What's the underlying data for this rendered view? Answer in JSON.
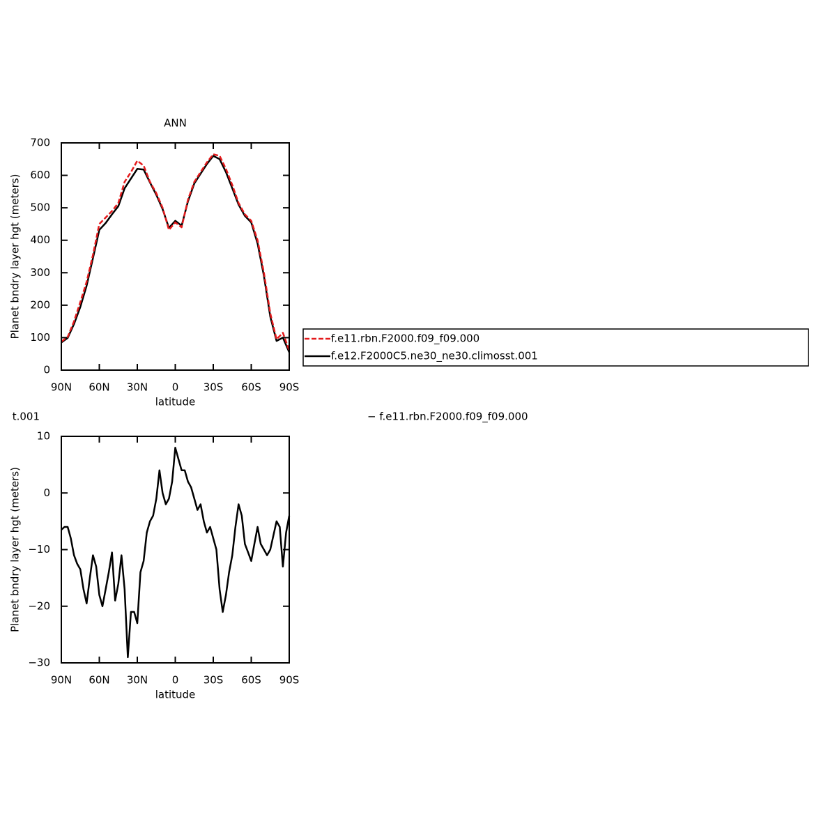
{
  "chart_data": [
    {
      "type": "line",
      "title": "ANN",
      "xlabel": "latitude",
      "ylabel": "Planet bndry layer hgt (meters)",
      "x": [
        90,
        85,
        80,
        75,
        70,
        65,
        60,
        55,
        50,
        45,
        40,
        35,
        30,
        25,
        20,
        15,
        10,
        5,
        0,
        -5,
        -10,
        -15,
        -20,
        -25,
        -30,
        -35,
        -40,
        -45,
        -50,
        -55,
        -60,
        -65,
        -70,
        -75,
        -80,
        -85,
        -90
      ],
      "series": [
        {
          "name": "f.e11.rbn.F2000.f09_f09.000",
          "color": "#e41a1c",
          "style": "dashed",
          "values": [
            88,
            102,
            150,
            210,
            272,
            355,
            450,
            470,
            490,
            515,
            580,
            610,
            645,
            630,
            580,
            545,
            500,
            432,
            455,
            440,
            525,
            580,
            610,
            640,
            665,
            660,
            620,
            570,
            515,
            480,
            460,
            400,
            300,
            175,
            95,
            115,
            60
          ]
        },
        {
          "name": "f.e12.F2000C5.ne30_ne30.climosst.001",
          "color": "#000000",
          "style": "solid",
          "values": [
            85,
            99,
            142,
            195,
            260,
            345,
            432,
            453,
            480,
            505,
            560,
            590,
            620,
            618,
            578,
            540,
            496,
            438,
            460,
            445,
            520,
            575,
            605,
            635,
            660,
            650,
            610,
            560,
            510,
            475,
            455,
            390,
            290,
            165,
            90,
            100,
            55
          ]
        }
      ],
      "xlim": [
        90,
        -90
      ],
      "xticks": [
        {
          "value": 90,
          "label": "90N"
        },
        {
          "value": 60,
          "label": "60N"
        },
        {
          "value": 30,
          "label": "30N"
        },
        0,
        {
          "value": -30,
          "label": "30S"
        },
        {
          "value": -60,
          "label": "60S"
        },
        {
          "value": -90,
          "label": "90S"
        }
      ],
      "ylim": [
        0,
        700
      ],
      "yticks": [
        0,
        100,
        200,
        300,
        400,
        500,
        600,
        700
      ],
      "legend": "right"
    },
    {
      "type": "line",
      "xlabel": "latitude",
      "ylabel": "Planet bndry layer hgt (meters)",
      "annotations": [
        "t.001",
        "− f.e11.rbn.F2000.f09_f09.000"
      ],
      "x": [
        90,
        87.5,
        85,
        82.5,
        80,
        77.5,
        75,
        72.5,
        70,
        67.5,
        65,
        62.5,
        60,
        57.5,
        55,
        52.5,
        50,
        47.5,
        45,
        42.5,
        40,
        37.5,
        35,
        32.5,
        30,
        27.5,
        25,
        22.5,
        20,
        17.5,
        15,
        12.5,
        10,
        7.5,
        5,
        2.5,
        0,
        -2.5,
        -5,
        -7.5,
        -10,
        -12.5,
        -15,
        -17.5,
        -20,
        -22.5,
        -25,
        -27.5,
        -30,
        -32.5,
        -35,
        -37.5,
        -40,
        -42.5,
        -45,
        -47.5,
        -50,
        -52.5,
        -55,
        -57.5,
        -60,
        -62.5,
        -65,
        -67.5,
        -70,
        -72.5,
        -75,
        -77.5,
        -80,
        -82.5,
        -85,
        -87.5,
        -90
      ],
      "values": [
        -6.5,
        -6,
        -6,
        -8,
        -11,
        -12.5,
        -13.5,
        -17,
        -19.5,
        -15,
        -11,
        -13,
        -18,
        -20,
        -17,
        -14,
        -10.5,
        -19,
        -16,
        -11,
        -17,
        -29,
        -21,
        -21,
        -23,
        -14,
        -12,
        -7,
        -5,
        -4,
        -1,
        4,
        0,
        -2,
        -1,
        2,
        8,
        6,
        4,
        4,
        2,
        1,
        -1,
        -3,
        -2,
        -5,
        -7,
        -6,
        -8,
        -10,
        -17,
        -21,
        -18,
        -14,
        -11,
        -6,
        -2,
        -4,
        -9,
        -10.5,
        -12,
        -9,
        -6,
        -9,
        -10,
        -11,
        -10,
        -7.5,
        -5,
        -6,
        -13,
        -7,
        -4
      ],
      "color": "#000000",
      "xlim": [
        90,
        -90
      ],
      "xticks": [
        {
          "value": 90,
          "label": "90N"
        },
        {
          "value": 60,
          "label": "60N"
        },
        {
          "value": 30,
          "label": "30N"
        },
        0,
        {
          "value": -30,
          "label": "30S"
        },
        {
          "value": -60,
          "label": "60S"
        },
        {
          "value": -90,
          "label": "90S"
        }
      ],
      "ylim": [
        -30,
        10
      ],
      "yticks": [
        10,
        0,
        {
          "value": -10,
          "label": "−10"
        },
        {
          "value": -20,
          "label": "−20"
        },
        {
          "value": -30,
          "label": "−30"
        }
      ]
    }
  ]
}
